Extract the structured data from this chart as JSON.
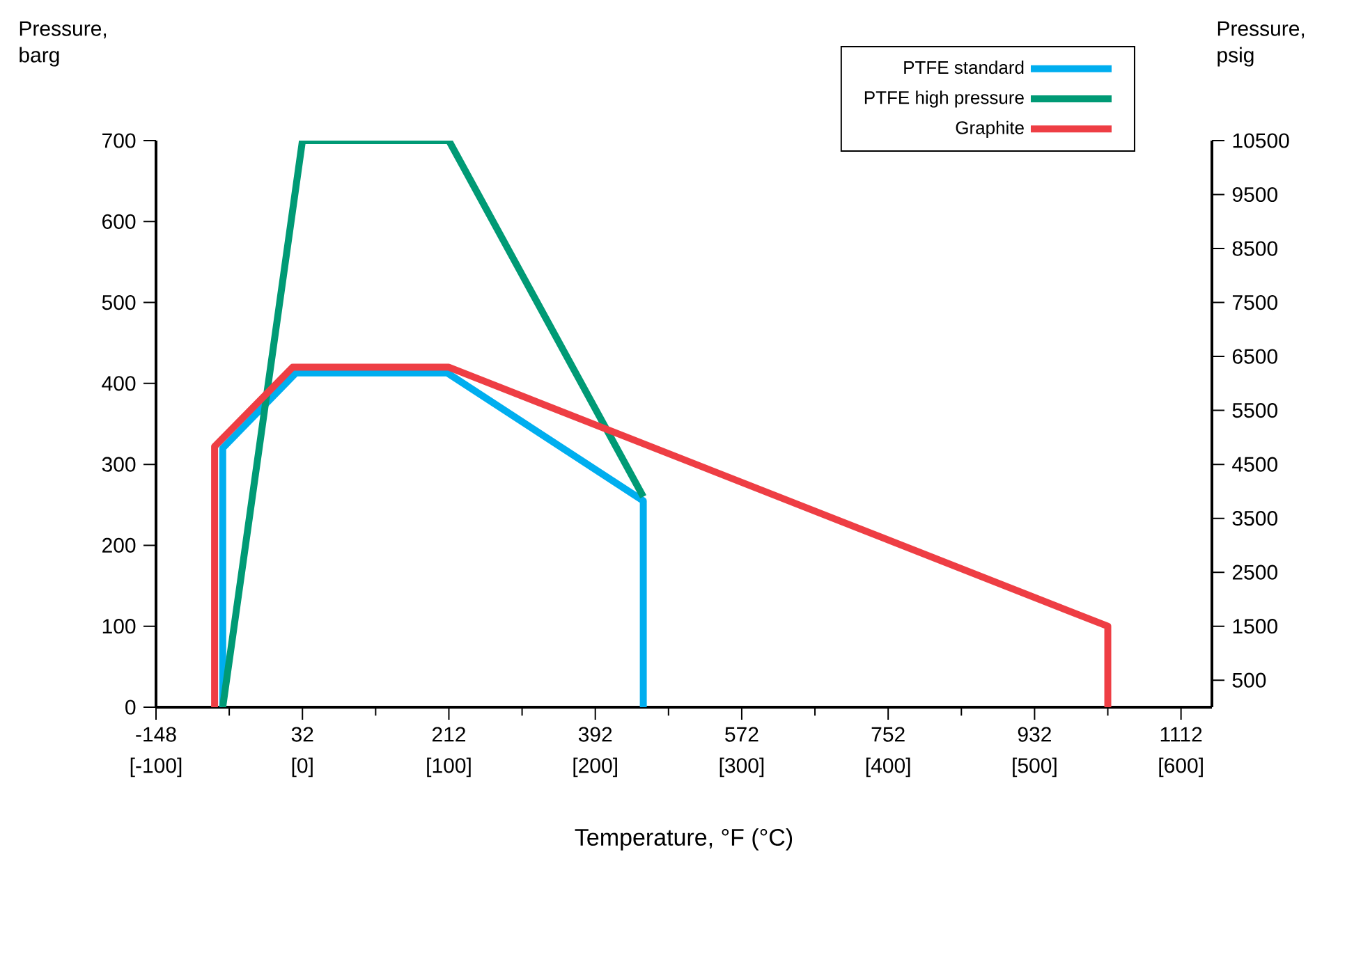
{
  "chart_data": {
    "type": "line",
    "xlabel": "Temperature, °F (°C)",
    "ylabel": "Pressure, barg",
    "y2label": "Pressure, psig",
    "xlim": [
      -148,
      1150
    ],
    "ylim": [
      0,
      700
    ],
    "y2lim": [
      0,
      10500
    ],
    "xticks": [
      -148,
      {
        "value": -58,
        "label": null
      },
      32,
      {
        "value": 122,
        "label": null
      },
      212,
      {
        "value": 302,
        "label": null
      },
      392,
      {
        "value": 482,
        "label": null
      },
      572,
      {
        "value": 662,
        "label": null
      },
      752,
      {
        "value": 842,
        "label": null
      },
      932,
      {
        "value": 1022,
        "label": null
      },
      1112
    ],
    "x2lim": [
      -100,
      621.1
    ],
    "x2ticks": [
      {
        "value": -100,
        "label": "[-100]"
      },
      {
        "value": 0,
        "label": "[0]"
      },
      {
        "value": 100,
        "label": "[100]"
      },
      {
        "value": 200,
        "label": "[200]"
      },
      {
        "value": 300,
        "label": "[300]"
      },
      {
        "value": 400,
        "label": "[400]"
      },
      {
        "value": 500,
        "label": "[500]"
      },
      {
        "value": 600,
        "label": "[600]"
      }
    ],
    "yticks": [
      0,
      100,
      200,
      300,
      400,
      500,
      600,
      700
    ],
    "y2ticks": [
      500,
      1500,
      2500,
      3500,
      4500,
      5500,
      6500,
      7500,
      8500,
      9500,
      10500
    ],
    "legend": "top right",
    "grid": false,
    "marker": "none",
    "line_style": "solid",
    "series": [
      {
        "name": "PTFE standard",
        "color": "#00aeef",
        "x": [
          -66,
          -66,
          24,
          210,
          451,
          451
        ],
        "values": [
          0,
          320,
          413,
          413,
          255,
          0
        ]
      },
      {
        "name": "PTFE high pressure",
        "color": "#009a75",
        "x": [
          -66,
          32,
          212,
          451
        ],
        "values": [
          0,
          700,
          700,
          260
        ]
      },
      {
        "name": "Graphite",
        "color": "#ee3e44",
        "x": [
          -76,
          -76,
          20,
          212,
          1022,
          1022
        ],
        "values": [
          0,
          322,
          420,
          420,
          100,
          0
        ]
      }
    ]
  }
}
